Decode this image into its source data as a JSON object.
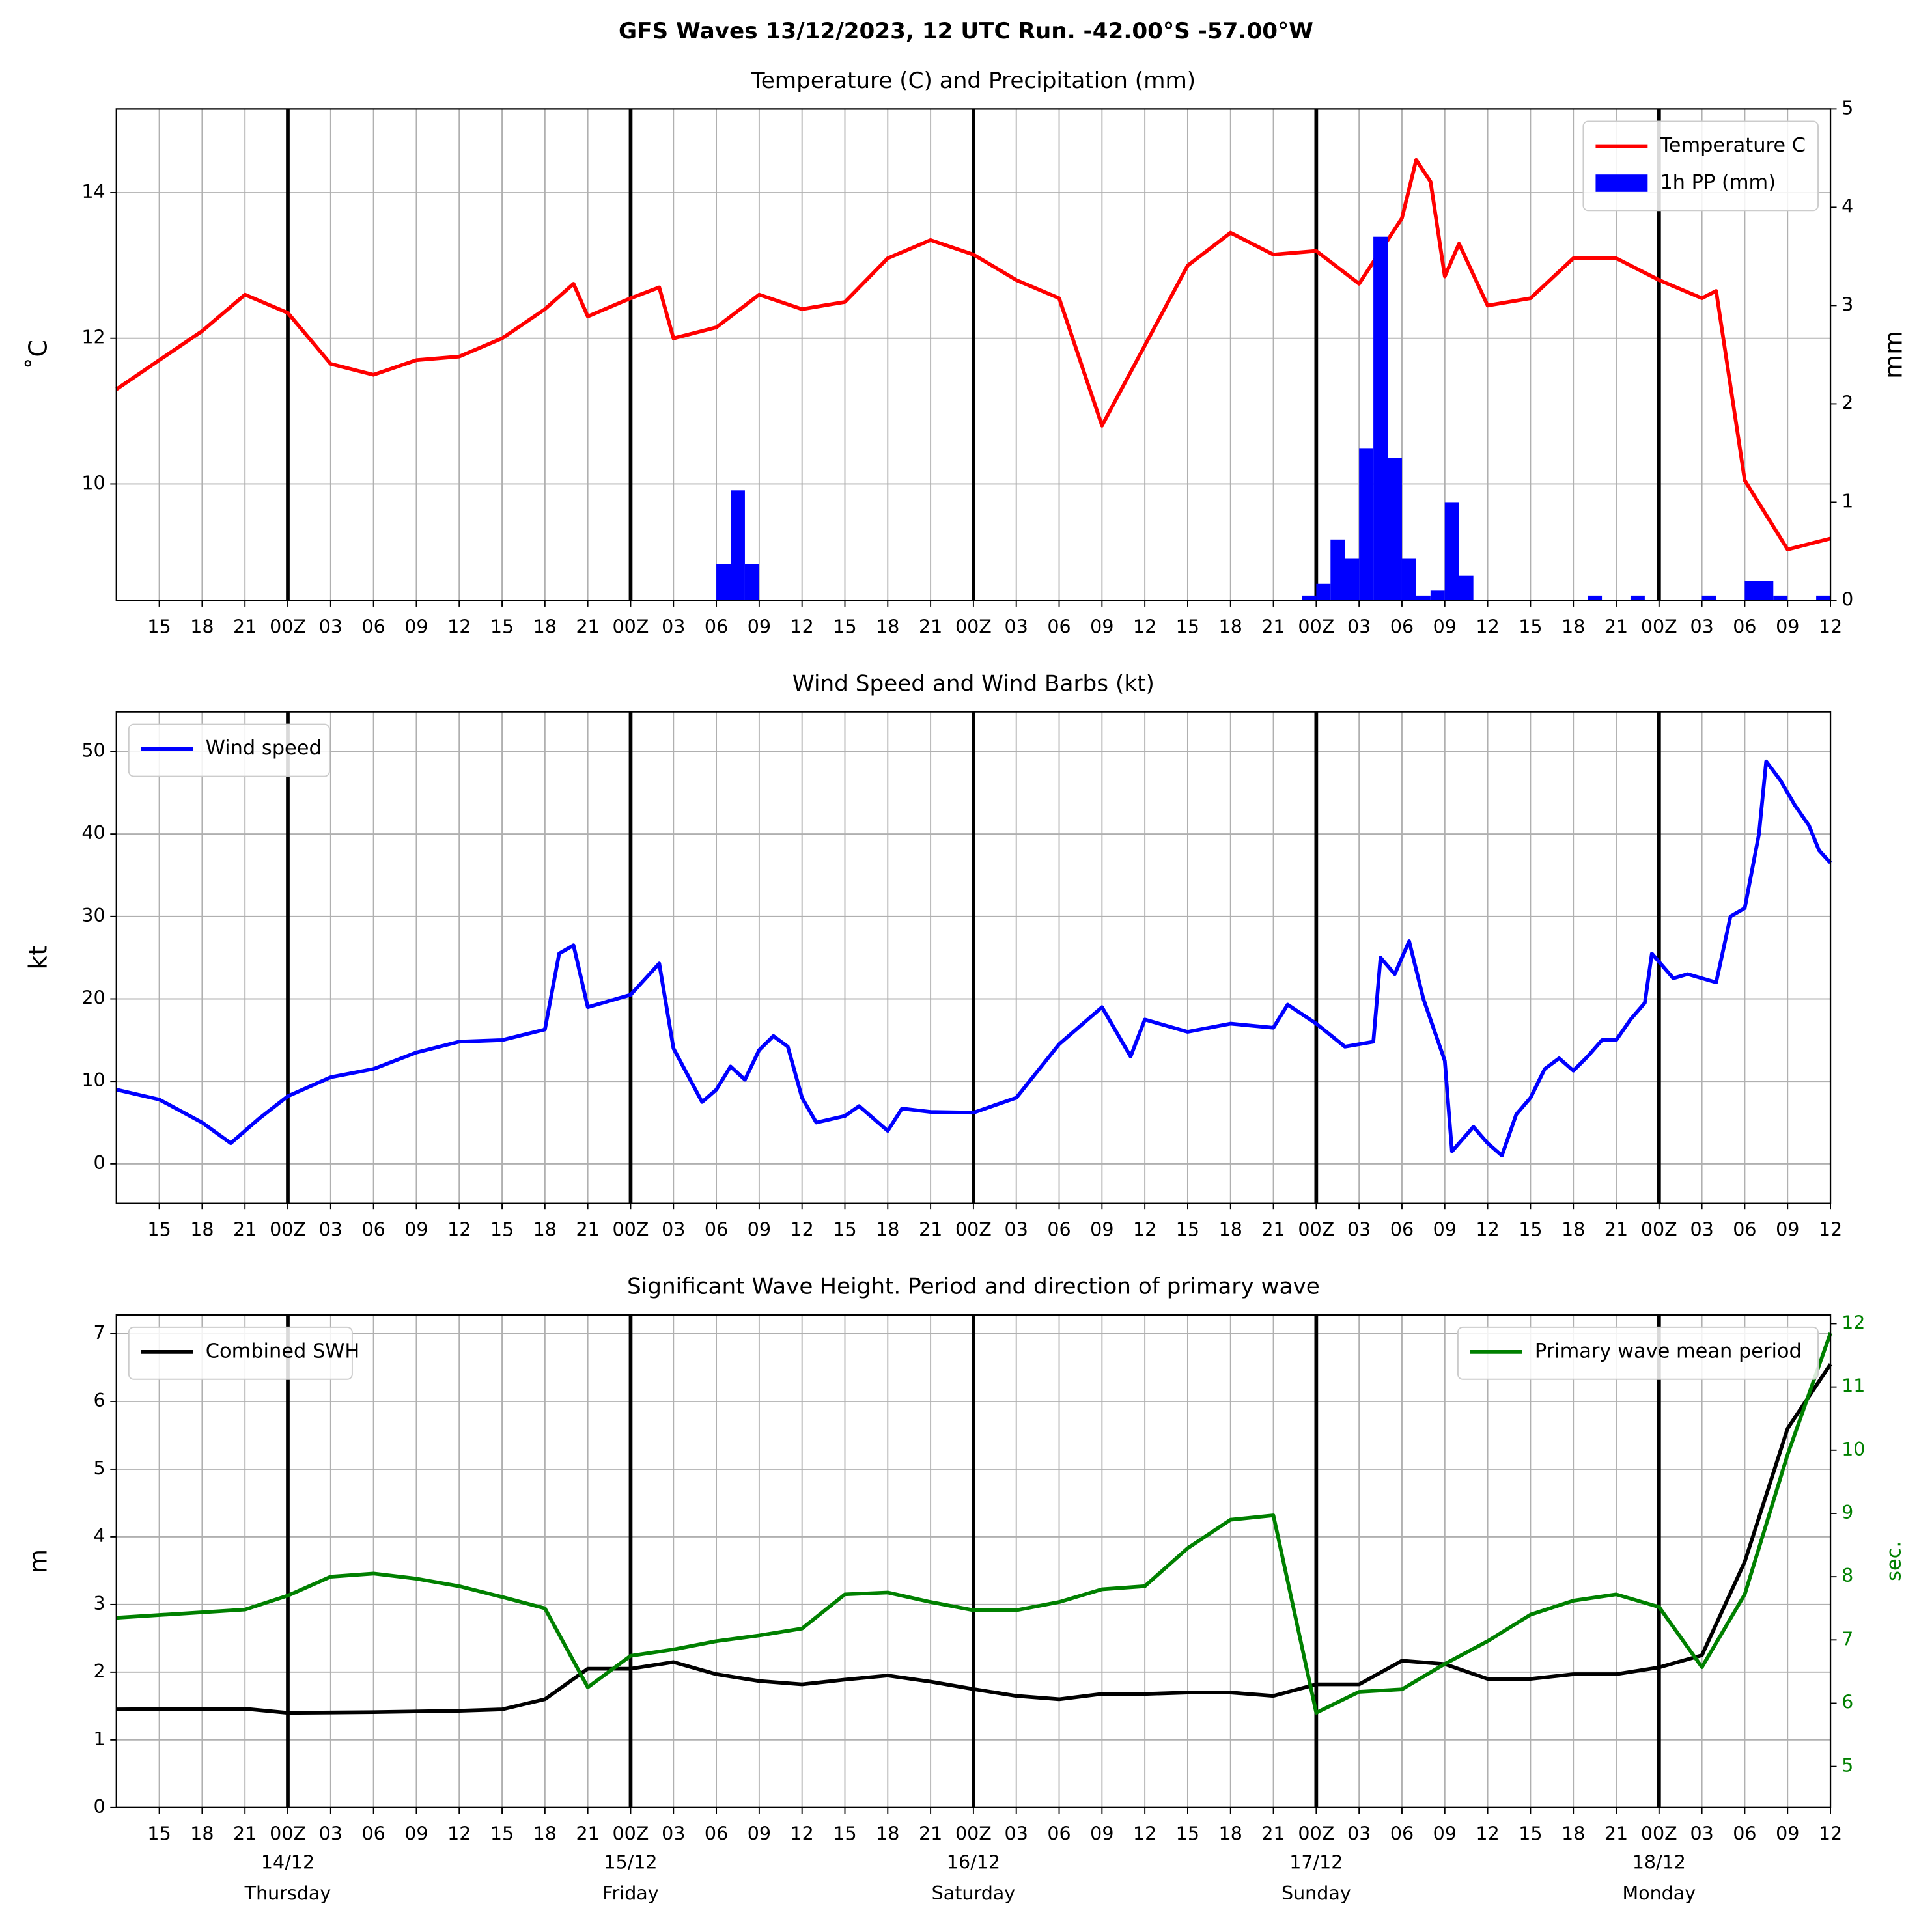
{
  "title": "GFS Waves 13/12/2023, 12 UTC Run. -42.00°S -57.00°W",
  "chart_data": [
    {
      "type": "line",
      "title": "Temperature (C) and Precipitation (mm)",
      "ylabel": "˚C",
      "y2label": "mm",
      "grid": true,
      "legend": "upper right",
      "xlim": [
        12,
        132
      ],
      "ylim": [
        8.4,
        15.15
      ],
      "yticks": [
        10,
        12,
        14
      ],
      "y2lim": [
        0,
        5
      ],
      "y2ticks": [
        0,
        1,
        2,
        3,
        4,
        5
      ],
      "xticks": [
        15,
        18,
        21,
        {
          "value": 24,
          "label": "00Z"
        },
        {
          "value": 27,
          "label": "03"
        },
        {
          "value": 30,
          "label": "06"
        },
        {
          "value": 33,
          "label": "09"
        },
        {
          "value": 36,
          "label": "12"
        },
        {
          "value": 39,
          "label": "15"
        },
        {
          "value": 42,
          "label": "18"
        },
        {
          "value": 45,
          "label": "21"
        },
        {
          "value": 48,
          "label": "00Z"
        },
        {
          "value": 51,
          "label": "03"
        },
        {
          "value": 54,
          "label": "06"
        },
        {
          "value": 57,
          "label": "09"
        },
        {
          "value": 60,
          "label": "12"
        },
        {
          "value": 63,
          "label": "15"
        },
        {
          "value": 66,
          "label": "18"
        },
        {
          "value": 69,
          "label": "21"
        },
        {
          "value": 72,
          "label": "00Z"
        },
        {
          "value": 75,
          "label": "03"
        },
        {
          "value": 78,
          "label": "06"
        },
        {
          "value": 81,
          "label": "09"
        },
        {
          "value": 84,
          "label": "12"
        },
        {
          "value": 87,
          "label": "15"
        },
        {
          "value": 90,
          "label": "18"
        },
        {
          "value": 93,
          "label": "21"
        },
        {
          "value": 96,
          "label": "00Z"
        },
        {
          "value": 99,
          "label": "03"
        },
        {
          "value": 102,
          "label": "06"
        },
        {
          "value": 105,
          "label": "09"
        },
        {
          "value": 108,
          "label": "12"
        },
        {
          "value": 111,
          "label": "15"
        },
        {
          "value": 114,
          "label": "18"
        },
        {
          "value": 117,
          "label": "21"
        },
        {
          "value": 120,
          "label": "00Z"
        },
        {
          "value": 123,
          "label": "03"
        },
        {
          "value": 126,
          "label": "06"
        },
        {
          "value": 129,
          "label": "09"
        },
        {
          "value": 132,
          "label": "12"
        }
      ],
      "day_lines": [
        24,
        48,
        72,
        96,
        120
      ],
      "series": [
        {
          "name": "Temperature C",
          "type": "line",
          "color": "#ff0000",
          "x": [
            12,
            15,
            18,
            21,
            24,
            27,
            30,
            33,
            36,
            39,
            42,
            44,
            45,
            48,
            50,
            51,
            54,
            57,
            60,
            63,
            66,
            69,
            72,
            75,
            78,
            81,
            84,
            87,
            90,
            93,
            96,
            99,
            102,
            103,
            104,
            105,
            106,
            108,
            111,
            114,
            117,
            120,
            123,
            124,
            126,
            129,
            132
          ],
          "values": [
            11.3,
            11.7,
            12.1,
            12.6,
            12.35,
            11.65,
            11.5,
            11.7,
            11.75,
            12.0,
            12.4,
            12.75,
            12.3,
            12.55,
            12.7,
            12.0,
            12.15,
            12.6,
            12.4,
            12.5,
            13.1,
            13.35,
            13.15,
            12.8,
            12.55,
            10.8,
            11.9,
            13.0,
            13.45,
            13.15,
            13.2,
            12.75,
            13.65,
            14.45,
            14.15,
            12.85,
            13.3,
            12.45,
            12.55,
            13.1,
            13.1,
            12.8,
            12.55,
            12.65,
            10.05,
            9.1,
            9.25
          ]
        },
        {
          "name": "1h PP (mm)",
          "type": "bar",
          "axis": "y2",
          "color": "#0000ff",
          "x": [
            54.5,
            55.5,
            56.5,
            95.5,
            96.5,
            97.5,
            98.5,
            99.5,
            100.5,
            101.5,
            102.5,
            103.5,
            104.5,
            105.5,
            106.5,
            115.5,
            118.5,
            123.5,
            126.5,
            127.5,
            128.5,
            131.5
          ],
          "values": [
            0.37,
            1.12,
            0.37,
            0.05,
            0.17,
            0.62,
            0.43,
            1.55,
            3.7,
            1.45,
            0.43,
            0.05,
            0.1,
            1.0,
            0.25,
            0.05,
            0.05,
            0.05,
            0.2,
            0.2,
            0.05,
            0.05
          ]
        }
      ]
    },
    {
      "type": "line",
      "title": "Wind Speed and Wind Barbs (kt)",
      "ylabel": "kt",
      "grid": true,
      "legend": "upper left",
      "xlim": [
        12,
        132
      ],
      "ylim": [
        -4.8,
        54.8
      ],
      "yticks": [
        0,
        10,
        20,
        30,
        40,
        50
      ],
      "xticks": [
        15,
        18,
        21,
        {
          "value": 24,
          "label": "00Z"
        },
        {
          "value": 27,
          "label": "03"
        },
        {
          "value": 30,
          "label": "06"
        },
        {
          "value": 33,
          "label": "09"
        },
        {
          "value": 36,
          "label": "12"
        },
        {
          "value": 39,
          "label": "15"
        },
        {
          "value": 42,
          "label": "18"
        },
        {
          "value": 45,
          "label": "21"
        },
        {
          "value": 48,
          "label": "00Z"
        },
        {
          "value": 51,
          "label": "03"
        },
        {
          "value": 54,
          "label": "06"
        },
        {
          "value": 57,
          "label": "09"
        },
        {
          "value": 60,
          "label": "12"
        },
        {
          "value": 63,
          "label": "15"
        },
        {
          "value": 66,
          "label": "18"
        },
        {
          "value": 69,
          "label": "21"
        },
        {
          "value": 72,
          "label": "00Z"
        },
        {
          "value": 75,
          "label": "03"
        },
        {
          "value": 78,
          "label": "06"
        },
        {
          "value": 81,
          "label": "09"
        },
        {
          "value": 84,
          "label": "12"
        },
        {
          "value": 87,
          "label": "15"
        },
        {
          "value": 90,
          "label": "18"
        },
        {
          "value": 93,
          "label": "21"
        },
        {
          "value": 96,
          "label": "00Z"
        },
        {
          "value": 99,
          "label": "03"
        },
        {
          "value": 102,
          "label": "06"
        },
        {
          "value": 105,
          "label": "09"
        },
        {
          "value": 108,
          "label": "12"
        },
        {
          "value": 111,
          "label": "15"
        },
        {
          "value": 114,
          "label": "18"
        },
        {
          "value": 117,
          "label": "21"
        },
        {
          "value": 120,
          "label": "00Z"
        },
        {
          "value": 123,
          "label": "03"
        },
        {
          "value": 126,
          "label": "06"
        },
        {
          "value": 129,
          "label": "09"
        },
        {
          "value": 132,
          "label": "12"
        }
      ],
      "day_lines": [
        24,
        48,
        72,
        96,
        120
      ],
      "series": [
        {
          "name": "Wind speed",
          "type": "line",
          "color": "#0000ff",
          "x": [
            12,
            15,
            18,
            20,
            22,
            24,
            27,
            30,
            33,
            36,
            39,
            42,
            43,
            44,
            45,
            48,
            50,
            51,
            53,
            54,
            55,
            56,
            57,
            58,
            59,
            60,
            61,
            63,
            64,
            66,
            67,
            69,
            72,
            75,
            78,
            81,
            83,
            84,
            87,
            90,
            93,
            94,
            96,
            98,
            100,
            100.5,
            101.5,
            102.5,
            103.5,
            105,
            105.5,
            107,
            108,
            109,
            110,
            111,
            112,
            113,
            114,
            115,
            116,
            117,
            118,
            119,
            119.5,
            121,
            122,
            124,
            125,
            126,
            127,
            127.5,
            128.5,
            129.5,
            130.5,
            131.2,
            132
          ],
          "values": [
            9,
            7.8,
            5,
            2.5,
            5.5,
            8.2,
            10.5,
            11.5,
            13.5,
            14.8,
            15,
            16.3,
            25.5,
            26.5,
            19,
            20.5,
            24.3,
            14,
            7.5,
            9,
            11.8,
            10.2,
            13.8,
            15.5,
            14.2,
            8,
            5,
            5.8,
            7,
            4,
            6.7,
            6.3,
            6.2,
            8,
            14.5,
            19,
            13,
            17.5,
            16,
            17,
            16.5,
            19.3,
            17,
            14.2,
            14.8,
            25,
            23,
            27,
            20,
            12.5,
            1.5,
            4.5,
            2.5,
            1,
            6,
            8,
            11.5,
            12.8,
            11.3,
            13,
            15,
            15,
            17.5,
            19.5,
            25.5,
            22.5,
            23,
            22,
            30,
            31,
            40,
            48.8,
            46.5,
            43.5,
            41,
            38,
            36.5
          ]
        }
      ]
    },
    {
      "type": "line",
      "title": "Significant Wave Height. Period and direction of primary wave",
      "ylabel": "m",
      "y2label": "sec.",
      "y2_color": "#008000",
      "grid": true,
      "xlim": [
        12,
        132
      ],
      "ylim": [
        0,
        7.28
      ],
      "yticks": [
        0,
        1,
        2,
        3,
        4,
        5,
        6,
        7
      ],
      "y2lim": [
        4.35,
        12.14
      ],
      "y2ticks": [
        5,
        6,
        7,
        8,
        9,
        10,
        11,
        12
      ],
      "xticks": [
        15,
        18,
        21,
        {
          "value": 24,
          "label": "00Z"
        },
        {
          "value": 27,
          "label": "03"
        },
        {
          "value": 30,
          "label": "06"
        },
        {
          "value": 33,
          "label": "09"
        },
        {
          "value": 36,
          "label": "12"
        },
        {
          "value": 39,
          "label": "15"
        },
        {
          "value": 42,
          "label": "18"
        },
        {
          "value": 45,
          "label": "21"
        },
        {
          "value": 48,
          "label": "00Z"
        },
        {
          "value": 51,
          "label": "03"
        },
        {
          "value": 54,
          "label": "06"
        },
        {
          "value": 57,
          "label": "09"
        },
        {
          "value": 60,
          "label": "12"
        },
        {
          "value": 63,
          "label": "15"
        },
        {
          "value": 66,
          "label": "18"
        },
        {
          "value": 69,
          "label": "21"
        },
        {
          "value": 72,
          "label": "00Z"
        },
        {
          "value": 75,
          "label": "03"
        },
        {
          "value": 78,
          "label": "06"
        },
        {
          "value": 81,
          "label": "09"
        },
        {
          "value": 84,
          "label": "12"
        },
        {
          "value": 87,
          "label": "15"
        },
        {
          "value": 90,
          "label": "18"
        },
        {
          "value": 93,
          "label": "21"
        },
        {
          "value": 96,
          "label": "00Z"
        },
        {
          "value": 99,
          "label": "03"
        },
        {
          "value": 102,
          "label": "06"
        },
        {
          "value": 105,
          "label": "09"
        },
        {
          "value": 108,
          "label": "12"
        },
        {
          "value": 111,
          "label": "15"
        },
        {
          "value": 114,
          "label": "18"
        },
        {
          "value": 117,
          "label": "21"
        },
        {
          "value": 120,
          "label": "00Z"
        },
        {
          "value": 123,
          "label": "03"
        },
        {
          "value": 126,
          "label": "06"
        },
        {
          "value": 129,
          "label": "09"
        },
        {
          "value": 132,
          "label": "12"
        }
      ],
      "day_lines": [
        24,
        48,
        72,
        96,
        120
      ],
      "day_labels": [
        {
          "value": 24,
          "date": "14/12",
          "day": "Thursday"
        },
        {
          "value": 48,
          "date": "15/12",
          "day": "Friday"
        },
        {
          "value": 72,
          "date": "16/12",
          "day": "Saturday"
        },
        {
          "value": 96,
          "date": "17/12",
          "day": "Sunday"
        },
        {
          "value": 120,
          "date": "18/12",
          "day": "Monday"
        }
      ],
      "series": [
        {
          "name": "Combined SWH",
          "type": "line",
          "color": "#000000",
          "legend": "upper left",
          "x": [
            12,
            21,
            24,
            30,
            36,
            39,
            42,
            45,
            48,
            51,
            54,
            57,
            60,
            63,
            66,
            69,
            72,
            75,
            78,
            81,
            84,
            87,
            90,
            93,
            96,
            99,
            102,
            105,
            108,
            111,
            114,
            117,
            120,
            123,
            126,
            129,
            132
          ],
          "values": [
            1.45,
            1.46,
            1.4,
            1.41,
            1.43,
            1.45,
            1.6,
            2.05,
            2.05,
            2.15,
            1.97,
            1.87,
            1.82,
            1.89,
            1.95,
            1.86,
            1.75,
            1.65,
            1.6,
            1.68,
            1.68,
            1.7,
            1.7,
            1.65,
            1.82,
            1.82,
            2.17,
            2.12,
            1.9,
            1.9,
            1.97,
            1.97,
            2.07,
            2.25,
            3.63,
            5.6,
            6.55
          ]
        },
        {
          "name": "Primary wave mean period",
          "type": "line",
          "axis": "y2",
          "color": "#008000",
          "legend": "upper right",
          "x": [
            12,
            21,
            24,
            27,
            30,
            33,
            36,
            39,
            42,
            45,
            48,
            51,
            54,
            57,
            60,
            63,
            66,
            69,
            72,
            75,
            78,
            81,
            84,
            87,
            90,
            93,
            96,
            99,
            102,
            105,
            108,
            111,
            114,
            117,
            120,
            123,
            126,
            129,
            132
          ],
          "values": [
            7.35,
            7.48,
            7.7,
            8.0,
            8.05,
            7.97,
            7.85,
            7.68,
            7.5,
            6.25,
            6.75,
            6.85,
            6.98,
            7.07,
            7.18,
            7.72,
            7.75,
            7.6,
            7.47,
            7.47,
            7.6,
            7.8,
            7.85,
            8.45,
            8.9,
            8.97,
            5.85,
            6.18,
            6.22,
            6.62,
            6.98,
            7.4,
            7.62,
            7.72,
            7.52,
            6.57,
            7.72,
            9.93,
            11.85
          ]
        }
      ]
    }
  ]
}
